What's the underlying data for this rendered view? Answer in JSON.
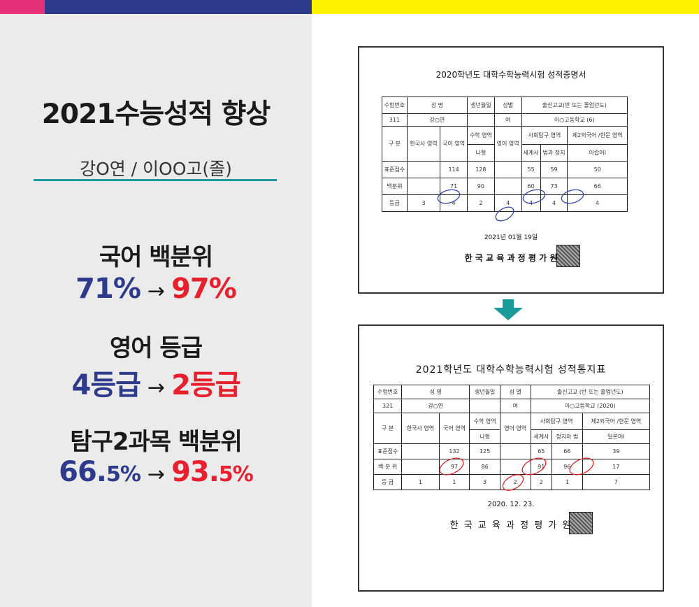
{
  "title": "2021수능성적 향상",
  "student": "강O연 / 이OO고(졸)",
  "stats": [
    {
      "label": "국어 백분위",
      "from": "71%",
      "to": "97%"
    },
    {
      "label": "영어 등급",
      "from": "4등급",
      "to": "2등급"
    },
    {
      "label": "탐구2과목 백분위",
      "from_main": "66.",
      "from_small": "5%",
      "to_main": "93.",
      "to_small": "5%"
    }
  ],
  "arrow": "→",
  "doc1": {
    "title": "2020학년도 대학수학능력시험 성적증명서",
    "h": [
      "수험번호",
      "성 명",
      "생년월일",
      "성별",
      "출신고교(반 또는 졸업년도)"
    ],
    "r1": [
      "311",
      "강○연",
      "",
      "여",
      "이○고등학교 (6)"
    ],
    "gubun": "구 분",
    "subjects": [
      "한국사 영역",
      "국어 영역",
      "수학 영역",
      "영어 영역",
      "사회탐구 영역",
      "제2외국어 /한문 영역"
    ],
    "sub2": [
      "나형",
      "세계사",
      "법과 정치",
      "아랍어Ⅰ"
    ],
    "rows": [
      {
        "label": "표준점수",
        "vals": [
          "",
          "114",
          "128",
          "",
          "55",
          "59",
          "50"
        ]
      },
      {
        "label": "백분위",
        "vals": [
          "",
          "71",
          "90",
          "",
          "60",
          "73",
          "66"
        ]
      },
      {
        "label": "등급",
        "vals": [
          "3",
          "4",
          "2",
          "4",
          "4",
          "4",
          "4"
        ]
      }
    ],
    "date": "2021년 01월 19일",
    "issuer": "한 국 교 육 과 정 평 가 원",
    "seal": "장"
  },
  "doc2": {
    "title": "2021학년도 대학수학능력시험 성적통지표",
    "h": [
      "수험번호",
      "성 명",
      "생년월일",
      "성 별",
      "출신고교 (반 또는 졸업년도)"
    ],
    "r1": [
      "321",
      "강○연",
      "",
      "여",
      "이○고등학교 (2020)"
    ],
    "gubun": "구 분",
    "subjects": [
      "한국사 영역",
      "국어 영역",
      "수학 영역",
      "영어 영역",
      "사회탐구 영역",
      "제2외국어 /한문 영역"
    ],
    "sub2": [
      "나형",
      "세계사",
      "정치와 법",
      "일본어Ⅰ"
    ],
    "rows": [
      {
        "label": "표준점수",
        "vals": [
          "",
          "132",
          "125",
          "",
          "65",
          "66",
          "39"
        ]
      },
      {
        "label": "백 분 위",
        "vals": [
          "",
          "97",
          "86",
          "",
          "91",
          "96",
          "17"
        ]
      },
      {
        "label": "등 급",
        "vals": [
          "1",
          "1",
          "3",
          "2",
          "2",
          "1",
          "7"
        ]
      }
    ],
    "date": "2020. 12. 23.",
    "issuer": "한 국 교 육 과 정 평 가 원",
    "seal": "장"
  },
  "colors": {
    "navy": "#2e3a8c",
    "red": "#e8202e",
    "teal": "#1a9a9a",
    "pink": "#e8307a",
    "yellow": "#fff200"
  }
}
